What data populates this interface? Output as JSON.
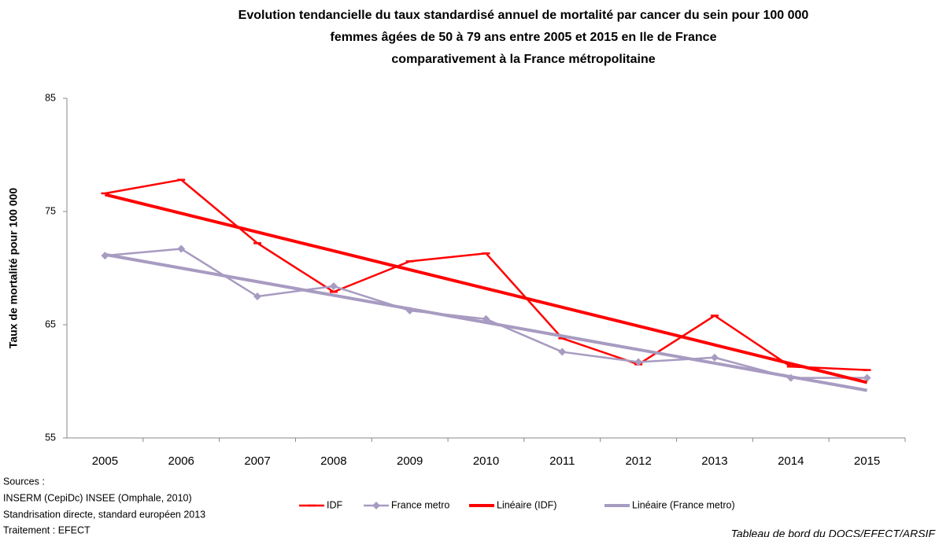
{
  "chart_data": {
    "type": "line",
    "title": [
      "Evolution tendancielle du taux standardisé annuel de mortalité par cancer du sein pour 100 000",
      "femmes âgées de 50 à 79 ans entre 2005 et 2015 en Ile de France",
      "comparativement à la France métropolitaine"
    ],
    "ylabel": "Taux de mortalité pour 100 000",
    "categories": [
      "2005",
      "2006",
      "2007",
      "2008",
      "2009",
      "2010",
      "2011",
      "2012",
      "2013",
      "2014",
      "2015"
    ],
    "ylim": [
      55,
      85
    ],
    "yticks": [
      55,
      65,
      75,
      85
    ],
    "grid": false,
    "series": [
      {
        "name": "IDF",
        "color": "#ff0000",
        "width": 2.5,
        "marker": "dash",
        "values": [
          76.6,
          77.8,
          72.2,
          67.9,
          70.6,
          71.3,
          63.8,
          61.5,
          65.8,
          61.3,
          61.0
        ]
      },
      {
        "name": "France metro",
        "color": "#a89bc1",
        "width": 2.5,
        "marker": "diamond",
        "values": [
          71.1,
          71.7,
          67.5,
          68.4,
          66.25,
          65.5,
          62.6,
          61.7,
          62.1,
          60.3,
          60.3
        ]
      },
      {
        "name": "Linéaire (IDF)",
        "color": "#ff0000",
        "width": 4,
        "marker": null,
        "values": [
          76.5,
          74.84,
          73.18,
          71.52,
          69.86,
          68.2,
          66.54,
          64.88,
          63.22,
          61.56,
          59.9
        ]
      },
      {
        "name": "Linéaire (France metro)",
        "color": "#a89bc1",
        "width": 4,
        "marker": null,
        "values": [
          71.2,
          70.0,
          68.8,
          67.6,
          66.4,
          65.2,
          64.0,
          62.8,
          61.6,
          60.4,
          59.2
        ]
      }
    ],
    "legend": "bottom",
    "sources": [
      "Sources :",
      "INSERM (CepiDc) INSEE (Omphale, 2010)",
      "Standrisation directe, standard européen 2013",
      "Traitement : EFECT"
    ],
    "credit": "Tableau de bord du DOCS/EFECT/ARSIF"
  }
}
